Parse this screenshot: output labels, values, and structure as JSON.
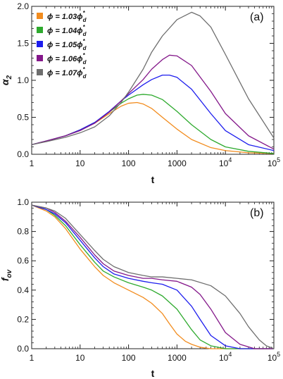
{
  "chart_data": [
    {
      "type": "line",
      "panel_label": "(a)",
      "xlabel": "t",
      "ylabel": "α₂",
      "xscale": "log",
      "xlim": [
        1,
        100000
      ],
      "ylim": [
        0,
        2.0
      ],
      "grid": false,
      "legend_position": "top-left",
      "x_ticks": [
        {
          "value": 1,
          "label": "1"
        },
        {
          "value": 10,
          "label": "10"
        },
        {
          "value": 100,
          "label": "100"
        },
        {
          "value": 1000,
          "label": "1000"
        },
        {
          "value": 10000,
          "label": "10",
          "exp": "4"
        },
        {
          "value": 100000,
          "label": "10",
          "exp": "5"
        }
      ],
      "y_ticks": [
        {
          "value": 0,
          "label": "0.0"
        },
        {
          "value": 0.5,
          "label": "0.5"
        },
        {
          "value": 1.0,
          "label": "1.0"
        },
        {
          "value": 1.5,
          "label": "1.5"
        },
        {
          "value": 2.0,
          "label": "2.0"
        }
      ],
      "series": [
        {
          "name": "ϕ = 1.03ϕ*d",
          "legend_text": "ϕ = 1.03ϕ",
          "color": "#f28c1e",
          "x": [
            1,
            2,
            5,
            10,
            20,
            40,
            70,
            100,
            150,
            200,
            300,
            500,
            1000,
            2000,
            5000,
            10000,
            30000,
            100000
          ],
          "values": [
            0.13,
            0.18,
            0.25,
            0.33,
            0.42,
            0.55,
            0.65,
            0.69,
            0.7,
            0.68,
            0.62,
            0.5,
            0.34,
            0.2,
            0.09,
            0.05,
            0.02,
            0.01
          ]
        },
        {
          "name": "ϕ = 1.04ϕ*d",
          "legend_text": "ϕ = 1.04ϕ",
          "color": "#2eaa2e",
          "x": [
            1,
            2,
            5,
            10,
            20,
            40,
            70,
            100,
            150,
            200,
            300,
            500,
            1000,
            2000,
            5000,
            10000,
            30000,
            100000
          ],
          "values": [
            0.13,
            0.18,
            0.25,
            0.33,
            0.43,
            0.57,
            0.69,
            0.75,
            0.8,
            0.81,
            0.8,
            0.74,
            0.58,
            0.4,
            0.2,
            0.1,
            0.04,
            0.01
          ]
        },
        {
          "name": "ϕ = 1.05ϕ*d",
          "legend_text": "ϕ = 1.05ϕ",
          "color": "#1d1dee",
          "x": [
            1,
            2,
            5,
            10,
            20,
            40,
            70,
            100,
            200,
            300,
            500,
            700,
            1000,
            2000,
            5000,
            10000,
            30000,
            100000
          ],
          "values": [
            0.13,
            0.18,
            0.25,
            0.33,
            0.43,
            0.58,
            0.72,
            0.8,
            0.94,
            1.01,
            1.07,
            1.07,
            1.04,
            0.88,
            0.55,
            0.32,
            0.13,
            0.05
          ]
        },
        {
          "name": "ϕ = 1.06ϕ*d",
          "legend_text": "ϕ = 1.06ϕ",
          "color": "#84188a",
          "x": [
            1,
            2,
            5,
            10,
            20,
            40,
            70,
            100,
            200,
            300,
            500,
            700,
            1000,
            2000,
            5000,
            10000,
            30000,
            100000
          ],
          "values": [
            0.13,
            0.18,
            0.25,
            0.32,
            0.42,
            0.57,
            0.72,
            0.82,
            1.01,
            1.15,
            1.28,
            1.34,
            1.33,
            1.2,
            0.85,
            0.55,
            0.25,
            0.07
          ]
        },
        {
          "name": "ϕ = 1.07ϕ*d",
          "legend_text": "ϕ = 1.07ϕ",
          "color": "#6e6e6e",
          "x": [
            1,
            2,
            5,
            10,
            20,
            40,
            70,
            100,
            200,
            300,
            500,
            1000,
            2000,
            3000,
            5000,
            10000,
            30000,
            100000
          ],
          "values": [
            0.13,
            0.17,
            0.23,
            0.29,
            0.37,
            0.52,
            0.7,
            0.84,
            1.15,
            1.38,
            1.6,
            1.82,
            1.92,
            1.87,
            1.72,
            1.35,
            0.75,
            0.22
          ]
        }
      ]
    },
    {
      "type": "line",
      "panel_label": "(b)",
      "xlabel": "t",
      "ylabel": "f_ov",
      "xscale": "log",
      "xlim": [
        1,
        100000
      ],
      "ylim": [
        0,
        1.0
      ],
      "grid": false,
      "x_ticks": [
        {
          "value": 1,
          "label": "1"
        },
        {
          "value": 10,
          "label": "10"
        },
        {
          "value": 100,
          "label": "100"
        },
        {
          "value": 1000,
          "label": "1000"
        },
        {
          "value": 10000,
          "label": "10",
          "exp": "4"
        },
        {
          "value": 100000,
          "label": "10",
          "exp": "5"
        }
      ],
      "y_ticks": [
        {
          "value": 0,
          "label": "0.0"
        },
        {
          "value": 0.2,
          "label": "0.2"
        },
        {
          "value": 0.4,
          "label": "0.4"
        },
        {
          "value": 0.6,
          "label": "0.6"
        },
        {
          "value": 0.8,
          "label": "0.8"
        },
        {
          "value": 1.0,
          "label": "1.0"
        }
      ],
      "series": [
        {
          "name": "ϕ = 1.03ϕ*d",
          "color": "#f28c1e",
          "x": [
            1,
            2,
            3,
            5,
            10,
            20,
            30,
            50,
            100,
            200,
            300,
            500,
            700,
            1000,
            1500,
            2000,
            3000,
            5000,
            10000,
            100000
          ],
          "values": [
            0.98,
            0.94,
            0.9,
            0.82,
            0.68,
            0.56,
            0.5,
            0.45,
            0.4,
            0.35,
            0.31,
            0.24,
            0.17,
            0.1,
            0.05,
            0.03,
            0.01,
            0.0,
            0.0,
            0.0
          ]
        },
        {
          "name": "ϕ = 1.04ϕ*d",
          "color": "#2eaa2e",
          "x": [
            1,
            2,
            3,
            5,
            10,
            20,
            30,
            50,
            100,
            200,
            300,
            500,
            1000,
            2000,
            3000,
            5000,
            10000,
            100000
          ],
          "values": [
            0.98,
            0.95,
            0.91,
            0.84,
            0.71,
            0.59,
            0.53,
            0.49,
            0.45,
            0.42,
            0.4,
            0.36,
            0.27,
            0.13,
            0.06,
            0.02,
            0.0,
            0.0
          ]
        },
        {
          "name": "ϕ = 1.05ϕ*d",
          "color": "#1d1dee",
          "x": [
            1,
            2,
            3,
            5,
            10,
            20,
            30,
            50,
            100,
            200,
            300,
            500,
            1000,
            2000,
            3000,
            5000,
            10000,
            20000,
            100000
          ],
          "values": [
            0.98,
            0.95,
            0.92,
            0.86,
            0.74,
            0.62,
            0.56,
            0.51,
            0.48,
            0.46,
            0.45,
            0.44,
            0.4,
            0.29,
            0.2,
            0.09,
            0.02,
            0.0,
            0.0
          ]
        },
        {
          "name": "ϕ = 1.06ϕ*d",
          "color": "#84188a",
          "x": [
            1,
            2,
            3,
            5,
            10,
            20,
            30,
            50,
            100,
            200,
            300,
            500,
            1000,
            2000,
            3000,
            5000,
            10000,
            20000,
            40000,
            100000
          ],
          "values": [
            0.98,
            0.96,
            0.93,
            0.87,
            0.76,
            0.64,
            0.58,
            0.53,
            0.5,
            0.48,
            0.48,
            0.47,
            0.46,
            0.42,
            0.37,
            0.27,
            0.11,
            0.03,
            0.0,
            0.0
          ]
        },
        {
          "name": "ϕ = 1.07ϕ*d",
          "color": "#6e6e6e",
          "x": [
            1,
            2,
            3,
            5,
            10,
            20,
            30,
            50,
            100,
            200,
            300,
            500,
            1000,
            2000,
            5000,
            10000,
            20000,
            30000,
            50000,
            70000,
            100000
          ],
          "values": [
            0.98,
            0.96,
            0.94,
            0.89,
            0.78,
            0.67,
            0.61,
            0.56,
            0.52,
            0.5,
            0.49,
            0.49,
            0.48,
            0.47,
            0.43,
            0.36,
            0.24,
            0.15,
            0.06,
            0.02,
            0.0
          ]
        }
      ]
    }
  ]
}
